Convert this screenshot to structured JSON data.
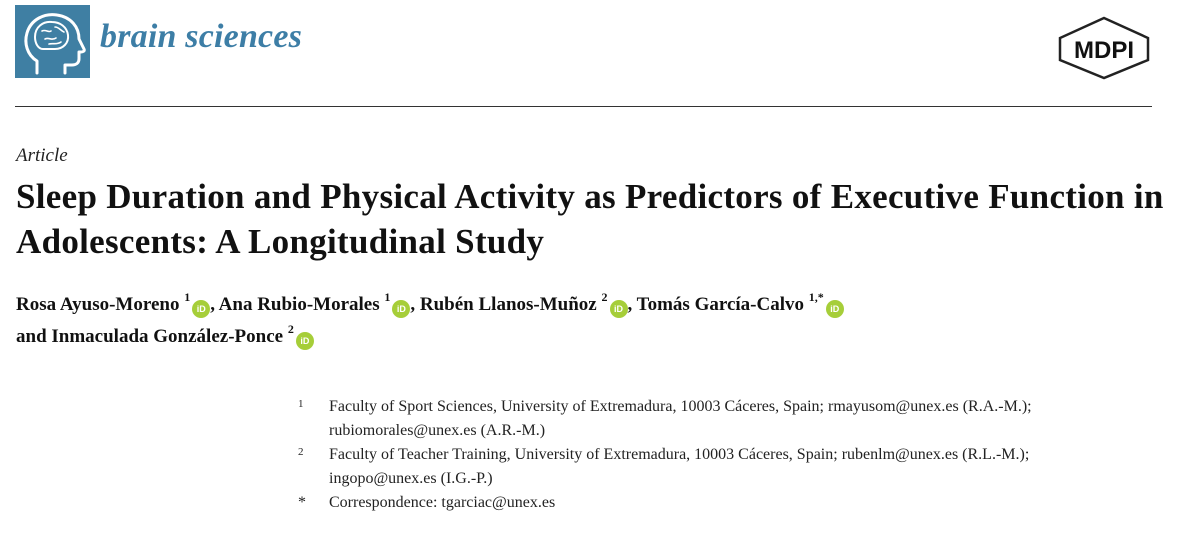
{
  "header": {
    "journal_name": "brain sciences",
    "publisher_logo_text": "MDPI",
    "colors": {
      "journal_accent": "#3d7ea6",
      "logo_box": "#3f7fa3",
      "orcid": "#a6ce39"
    },
    "icons": [
      "head-brain-icon",
      "mdpi-logo"
    ]
  },
  "article": {
    "type": "Article",
    "title": "Sleep Duration and Physical Activity as Predictors of Executive Function in Adolescents: A Longitudinal Study"
  },
  "authors": [
    {
      "name": "Rosa Ayuso-Moreno",
      "affil": "1",
      "orcid": "iD"
    },
    {
      "name": "Ana Rubio-Morales",
      "affil": "1",
      "orcid": "iD"
    },
    {
      "name": "Rubén Llanos-Muñoz",
      "affil": "2",
      "orcid": "iD"
    },
    {
      "name": "Tomás García-Calvo",
      "affil": "1,*",
      "orcid": "iD"
    },
    {
      "name": "Inmaculada González-Ponce",
      "affil": "2",
      "orcid": "iD"
    }
  ],
  "author_separators": {
    "comma": ",",
    "and": "and"
  },
  "affiliations": [
    {
      "marker": "1",
      "line1": "Faculty of Sport Sciences, University of Extremadura, 10003 Cáceres, Spain; rmayusom@unex.es (R.A.-M.);",
      "line2": "rubiomorales@unex.es (A.R.-M.)"
    },
    {
      "marker": "2",
      "line1": "Faculty of Teacher Training, University of Extremadura, 10003 Cáceres, Spain; rubenlm@unex.es (R.L.-M.);",
      "line2": "ingopo@unex.es (I.G.-P.)"
    },
    {
      "marker": "*",
      "line1": "Correspondence: tgarciac@unex.es"
    }
  ]
}
